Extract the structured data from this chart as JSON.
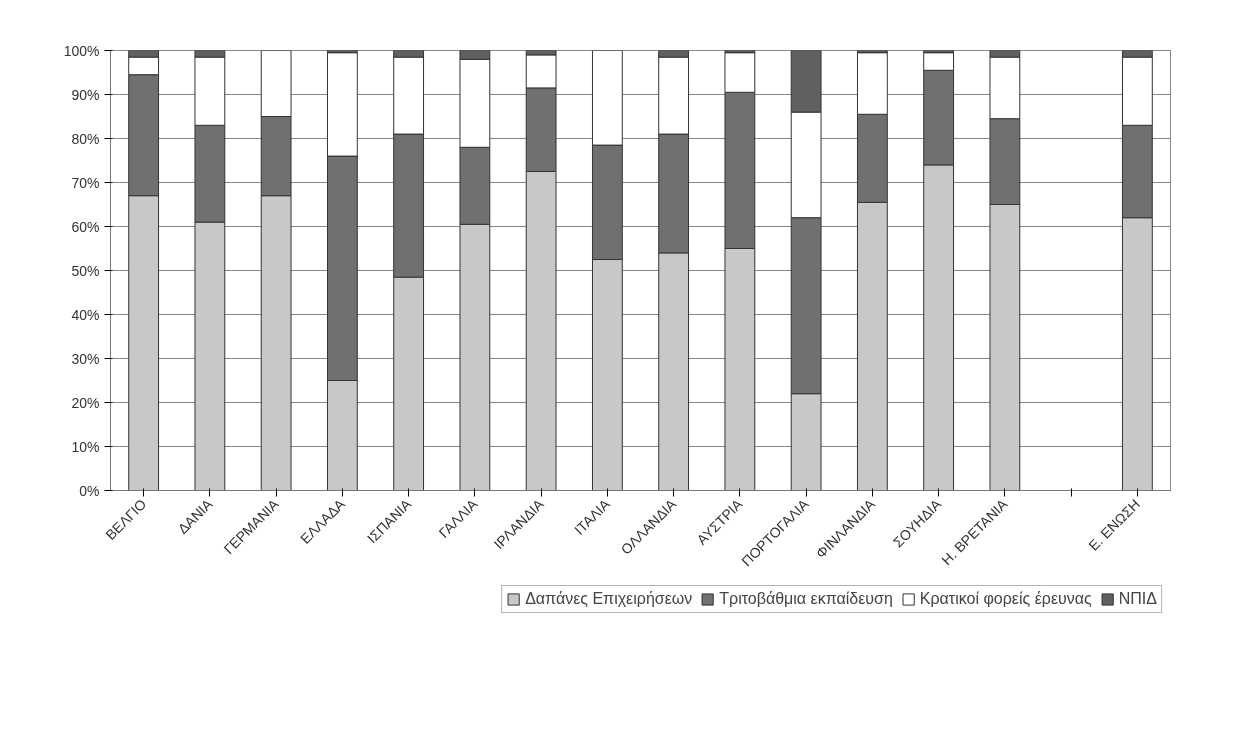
{
  "chart_data": {
    "type": "bar",
    "stacked": true,
    "categories": [
      "ΒΕΛΓΙΟ",
      "ΔΑΝΙΑ",
      "ΓΕΡΜΑΝΙΑ",
      "ΕΛΛΑΔΑ",
      "ΙΣΠΑΝΙΑ",
      "ΓΑΛΛΙΑ",
      "ΙΡΛΑΝΔΙΑ",
      "ΙΤΑΛΙΑ",
      "ΟΛΛΑΝΔΙΑ",
      "ΑΥΣΤΡΙΑ",
      "ΠΟΡΤΟΓΑΛΙΑ",
      "ΦΙΝΛΑΝΔΙΑ",
      "ΣΟΥΗΔΙΑ",
      "Η. ΒΡΕΤΑΝΙΑ",
      null,
      "Ε. ΕΝΩΣΗ"
    ],
    "series": [
      {
        "name": "Δαπάνες Επιχειρήσεων",
        "color": "#c8c8c8",
        "values": [
          67,
          61,
          67,
          25,
          48.5,
          60.5,
          72.5,
          52.5,
          54,
          55,
          22,
          65.5,
          74,
          65,
          null,
          62
        ]
      },
      {
        "name": "Τριτοβάθμια εκπαίδευση",
        "color": "#707070",
        "values": [
          27.5,
          22,
          18,
          51,
          32.5,
          17.5,
          19,
          26,
          27,
          35.5,
          40,
          20,
          21.5,
          19.5,
          null,
          21
        ]
      },
      {
        "name": "Κρατικοί φορείς έρευνας",
        "color": "#ffffff",
        "values": [
          4,
          15.5,
          15,
          23.5,
          17.5,
          20,
          7.5,
          21.5,
          17.5,
          9,
          24,
          14,
          4,
          14,
          null,
          15.5
        ]
      },
      {
        "name": "ΝΠΙΔ",
        "color": "#606060",
        "values": [
          1.5,
          1.5,
          0,
          0.5,
          1.5,
          2,
          1,
          0,
          1.5,
          0.5,
          14,
          0.5,
          0.5,
          1.5,
          null,
          1.5
        ]
      }
    ],
    "ylim": [
      0,
      100
    ],
    "yticks": [
      {
        "value": 0,
        "label": "0%"
      },
      {
        "value": 10,
        "label": "10%"
      },
      {
        "value": 20,
        "label": "20%"
      },
      {
        "value": 30,
        "label": "30%"
      },
      {
        "value": 40,
        "label": "40%"
      },
      {
        "value": 50,
        "label": "50%"
      },
      {
        "value": 60,
        "label": "60%"
      },
      {
        "value": 70,
        "label": "70%"
      },
      {
        "value": 80,
        "label": "80%"
      },
      {
        "value": 90,
        "label": "90%"
      },
      {
        "value": 100,
        "label": "100%"
      }
    ],
    "grid": "y",
    "legend": "bottom"
  }
}
